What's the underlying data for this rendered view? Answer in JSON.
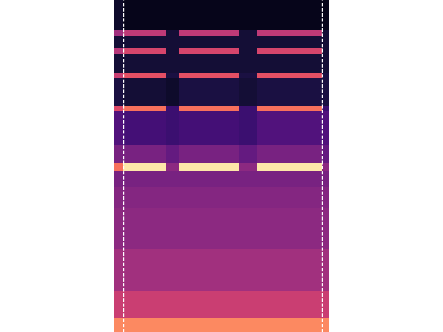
{
  "chart_data": {
    "type": "heatmap",
    "x_edges": [
      0,
      1.3,
      7.5,
      9.3,
      18.0,
      20.7,
      30.0,
      31.0
    ],
    "y_edges": [
      0,
      2,
      6,
      12,
      18,
      21,
      23.3,
      24.5,
      27,
      31.9,
      32.7,
      36.7,
      37.5,
      40.2,
      41.0,
      42.8,
      43.6,
      48
    ],
    "cells": [
      [
        75,
        75,
        75,
        75,
        75,
        75,
        75
      ],
      [
        55,
        55,
        55,
        55,
        55,
        55,
        55
      ],
      [
        45,
        45,
        45,
        45,
        45,
        45,
        45
      ],
      [
        40,
        40,
        40,
        40,
        40,
        40,
        40
      ],
      [
        38,
        38,
        38,
        38,
        38,
        38,
        38
      ],
      [
        35,
        35,
        35,
        35,
        35,
        35,
        35
      ],
      [
        70,
        95,
        40,
        95,
        40,
        95,
        40
      ],
      [
        35,
        35,
        30,
        35,
        30,
        35,
        30
      ],
      [
        25,
        22,
        20,
        22,
        20,
        25,
        25
      ],
      [
        60,
        70,
        20,
        70,
        20,
        70,
        20
      ],
      [
        12,
        10,
        8,
        12,
        10,
        12,
        12
      ],
      [
        55,
        62,
        12,
        62,
        12,
        62,
        12
      ],
      [
        10,
        10,
        10,
        10,
        10,
        10,
        10
      ],
      [
        50,
        58,
        10,
        58,
        10,
        58,
        10
      ],
      [
        10,
        10,
        10,
        10,
        10,
        10,
        10
      ],
      [
        45,
        52,
        10,
        52,
        10,
        52,
        10
      ],
      [
        8,
        5,
        5,
        5,
        5,
        5,
        5
      ]
    ],
    "zlim": [
      0,
      100
    ],
    "xlim": [
      0,
      31.0
    ],
    "ylim": [
      0,
      48
    ],
    "vlines": [
      1.3,
      30.0
    ],
    "color": "#ffffff",
    "line_style": "dashed",
    "tick_labels": false
  }
}
